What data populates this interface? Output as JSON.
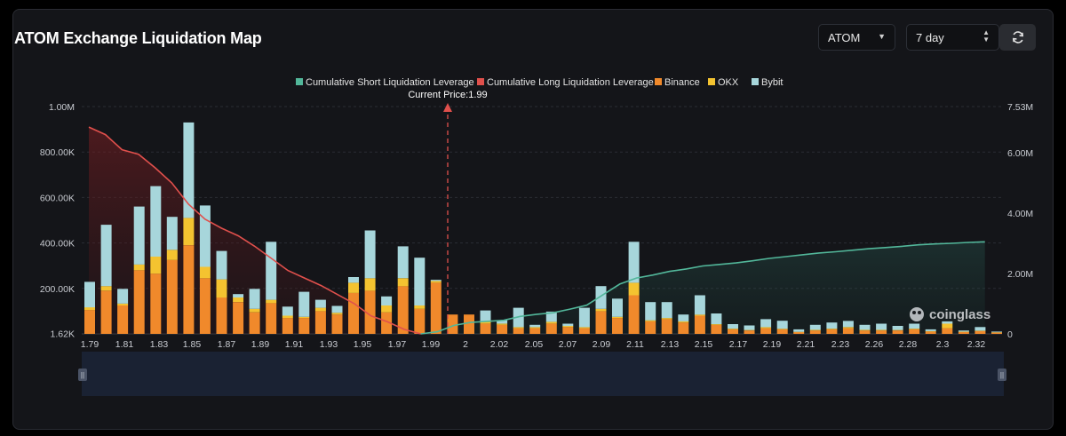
{
  "header": {
    "title": "ATOM Exchange Liquidation Map",
    "coin_select": "ATOM",
    "period_select": "7 day"
  },
  "chart_data": {
    "type": "bar",
    "current_price_label": "Current Price:1.99",
    "watermark": "coinglass",
    "legend": [
      {
        "name": "Cumulative Short Liquidation Leverage",
        "color": "#52b79a"
      },
      {
        "name": "Cumulative Long Liquidation Leverage",
        "color": "#e0504c"
      },
      {
        "name": "Binance",
        "color": "#f0892b"
      },
      {
        "name": "OKX",
        "color": "#f4c330"
      },
      {
        "name": "Bybit",
        "color": "#a7d6db"
      }
    ],
    "x_ticks": [
      "1.79",
      "1.81",
      "1.83",
      "1.85",
      "1.87",
      "1.89",
      "1.91",
      "1.93",
      "1.95",
      "1.97",
      "1.99",
      "2",
      "2.02",
      "2.05",
      "2.07",
      "2.09",
      "2.11",
      "2.13",
      "2.15",
      "2.17",
      "2.19",
      "2.21",
      "2.23",
      "2.26",
      "2.28",
      "2.3",
      "2.32"
    ],
    "y_left_ticks": [
      "1.62K",
      "200.00K",
      "400.00K",
      "600.00K",
      "800.00K",
      "1.00M"
    ],
    "y_right_ticks": [
      "0",
      "2.00M",
      "4.00M",
      "6.00M",
      "7.53M"
    ],
    "ylim_left": [
      1620,
      1000000
    ],
    "ylim_right": [
      0,
      7530000
    ],
    "bars": [
      {
        "binance": 105000,
        "okx": 12000,
        "bybit": 112000
      },
      {
        "binance": 190000,
        "okx": 20000,
        "bybit": 270000
      },
      {
        "binance": 125000,
        "okx": 8000,
        "bybit": 65000
      },
      {
        "binance": 280000,
        "okx": 25000,
        "bybit": 255000
      },
      {
        "binance": 265000,
        "okx": 75000,
        "bybit": 310000
      },
      {
        "binance": 325000,
        "okx": 45000,
        "bybit": 145000
      },
      {
        "binance": 390000,
        "okx": 120000,
        "bybit": 420000
      },
      {
        "binance": 245000,
        "okx": 50000,
        "bybit": 270000
      },
      {
        "binance": 160000,
        "okx": 80000,
        "bybit": 125000
      },
      {
        "binance": 140000,
        "okx": 20000,
        "bybit": 15000
      },
      {
        "binance": 95000,
        "okx": 15000,
        "bybit": 88000
      },
      {
        "binance": 135000,
        "okx": 15000,
        "bybit": 255000
      },
      {
        "binance": 70000,
        "okx": 10000,
        "bybit": 40000
      },
      {
        "binance": 70000,
        "okx": 5000,
        "bybit": 110000
      },
      {
        "binance": 100000,
        "okx": 15000,
        "bybit": 35000
      },
      {
        "binance": 85000,
        "okx": 8000,
        "bybit": 30000
      },
      {
        "binance": 180000,
        "okx": 45000,
        "bybit": 25000
      },
      {
        "binance": 190000,
        "okx": 55000,
        "bybit": 210000
      },
      {
        "binance": 95000,
        "okx": 30000,
        "bybit": 40000
      },
      {
        "binance": 210000,
        "okx": 35000,
        "bybit": 140000
      },
      {
        "binance": 110000,
        "okx": 15000,
        "bybit": 210000
      },
      {
        "binance": 225000,
        "okx": 8000,
        "bybit": 5000
      },
      {
        "binance": 85000,
        "okx": 0,
        "bybit": 0
      },
      {
        "binance": 85000,
        "okx": 0,
        "bybit": 0
      },
      {
        "binance": 45000,
        "okx": 8000,
        "bybit": 50000
      },
      {
        "binance": 40000,
        "okx": 5000,
        "bybit": 15000
      },
      {
        "binance": 25000,
        "okx": 5000,
        "bybit": 85000
      },
      {
        "binance": 25000,
        "okx": 5000,
        "bybit": 10000
      },
      {
        "binance": 45000,
        "okx": 8000,
        "bybit": 45000
      },
      {
        "binance": 30000,
        "okx": 5000,
        "bybit": 10000
      },
      {
        "binance": 25000,
        "okx": 5000,
        "bybit": 85000
      },
      {
        "binance": 100000,
        "okx": 10000,
        "bybit": 100000
      },
      {
        "binance": 70000,
        "okx": 5000,
        "bybit": 80000
      },
      {
        "binance": 170000,
        "okx": 55000,
        "bybit": 180000
      },
      {
        "binance": 55000,
        "okx": 5000,
        "bybit": 80000
      },
      {
        "binance": 65000,
        "okx": 5000,
        "bybit": 70000
      },
      {
        "binance": 50000,
        "okx": 5000,
        "bybit": 30000
      },
      {
        "binance": 80000,
        "okx": 5000,
        "bybit": 85000
      },
      {
        "binance": 40000,
        "okx": 3000,
        "bybit": 47000
      },
      {
        "binance": 20000,
        "okx": 3000,
        "bybit": 20000
      },
      {
        "binance": 15000,
        "okx": 2000,
        "bybit": 20000
      },
      {
        "binance": 25000,
        "okx": 5000,
        "bybit": 35000
      },
      {
        "binance": 20000,
        "okx": 3000,
        "bybit": 35000
      },
      {
        "binance": 8000,
        "okx": 1000,
        "bybit": 11000
      },
      {
        "binance": 15000,
        "okx": 3000,
        "bybit": 22000
      },
      {
        "binance": 20000,
        "okx": 3000,
        "bybit": 27000
      },
      {
        "binance": 25000,
        "okx": 5000,
        "bybit": 27000
      },
      {
        "binance": 15000,
        "okx": 3000,
        "bybit": 22000
      },
      {
        "binance": 15000,
        "okx": 3000,
        "bybit": 27000
      },
      {
        "binance": 15000,
        "okx": 2000,
        "bybit": 18000
      },
      {
        "binance": 20000,
        "okx": 3000,
        "bybit": 22000
      },
      {
        "binance": 10000,
        "okx": 2000,
        "bybit": 8000
      },
      {
        "binance": 25000,
        "okx": 20000,
        "bybit": 10000
      },
      {
        "binance": 8000,
        "okx": 2000,
        "bybit": 5000
      },
      {
        "binance": 12000,
        "okx": 2000,
        "bybit": 16000
      },
      {
        "binance": 6000,
        "okx": 1000,
        "bybit": 3000
      }
    ],
    "long_cumulative": [
      [
        1.79,
        6.85
      ],
      [
        1.8,
        6.6
      ],
      [
        1.81,
        6.1
      ],
      [
        1.82,
        5.95
      ],
      [
        1.83,
        5.5
      ],
      [
        1.84,
        5.0
      ],
      [
        1.85,
        4.3
      ],
      [
        1.86,
        3.8
      ],
      [
        1.87,
        3.5
      ],
      [
        1.88,
        3.25
      ],
      [
        1.89,
        2.9
      ],
      [
        1.9,
        2.5
      ],
      [
        1.91,
        2.1
      ],
      [
        1.92,
        1.85
      ],
      [
        1.93,
        1.6
      ],
      [
        1.94,
        1.3
      ],
      [
        1.95,
        1.0
      ],
      [
        1.96,
        0.6
      ],
      [
        1.97,
        0.4
      ],
      [
        1.98,
        0.15
      ],
      [
        1.99,
        0.0
      ]
    ],
    "short_cumulative": [
      [
        1.99,
        0.0
      ],
      [
        2.0,
        0.07
      ],
      [
        2.01,
        0.28
      ],
      [
        2.02,
        0.38
      ],
      [
        2.04,
        0.45
      ],
      [
        2.05,
        0.58
      ],
      [
        2.06,
        0.65
      ],
      [
        2.07,
        0.7
      ],
      [
        2.08,
        0.82
      ],
      [
        2.09,
        0.95
      ],
      [
        2.1,
        1.3
      ],
      [
        2.11,
        1.65
      ],
      [
        2.12,
        1.85
      ],
      [
        2.13,
        1.95
      ],
      [
        2.14,
        2.07
      ],
      [
        2.15,
        2.15
      ],
      [
        2.16,
        2.25
      ],
      [
        2.17,
        2.3
      ],
      [
        2.18,
        2.35
      ],
      [
        2.19,
        2.42
      ],
      [
        2.2,
        2.5
      ],
      [
        2.21,
        2.56
      ],
      [
        2.22,
        2.62
      ],
      [
        2.23,
        2.68
      ],
      [
        2.24,
        2.72
      ],
      [
        2.25,
        2.77
      ],
      [
        2.26,
        2.82
      ],
      [
        2.27,
        2.86
      ],
      [
        2.28,
        2.9
      ],
      [
        2.29,
        2.95
      ],
      [
        2.3,
        2.98
      ],
      [
        2.31,
        3.0
      ],
      [
        2.32,
        3.03
      ],
      [
        2.33,
        3.05
      ]
    ]
  }
}
